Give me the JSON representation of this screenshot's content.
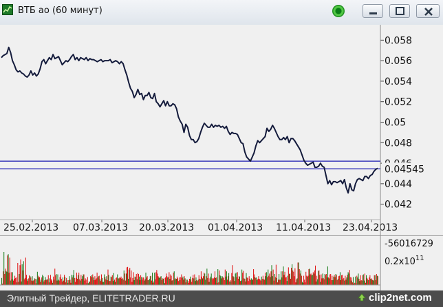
{
  "window": {
    "title": "ВТБ ао (60 минут)",
    "status_icon": "green-status-dot-icon",
    "controls": [
      "minimize-icon",
      "maximize-icon",
      "close-icon"
    ]
  },
  "colors": {
    "price_line": "#141b3c",
    "level_lines": "#1919b0",
    "vol_up": "#1f7f1f",
    "vol_down": "#e01818",
    "footer_bg": "#4c4c4c"
  },
  "chart_data": [
    {
      "type": "line",
      "title": "",
      "x_tick_labels": [
        "25.02.2013",
        "07.03.2013",
        "20.03.2013",
        "01.04.2013",
        "11.04.2013",
        "23.04.2013"
      ],
      "y_tick_labels": [
        "0.058",
        "0.056",
        "0.054",
        "0.052",
        "0.05",
        "0.048",
        "0.046",
        "0.044",
        "0.042"
      ],
      "ylim": [
        0.0405,
        0.0595
      ],
      "horizontal_levels": [
        0.0462,
        0.04545
      ],
      "last_value_label": "0.04545",
      "grid": false,
      "series": [
        {
          "values": [
            0.0563,
            0.0565,
            0.0566,
            0.0567,
            0.0573,
            0.0568,
            0.056,
            0.0556,
            0.0551,
            0.0549,
            0.055,
            0.0548,
            0.0547,
            0.0545,
            0.0544,
            0.0546,
            0.055,
            0.0546,
            0.0548,
            0.0545,
            0.0547,
            0.0552,
            0.0559,
            0.0561,
            0.0557,
            0.056,
            0.0563,
            0.0561,
            0.0566,
            0.0562,
            0.0563,
            0.0564,
            0.056,
            0.0556,
            0.0558,
            0.056,
            0.0559,
            0.0561,
            0.0564,
            0.0566,
            0.0561,
            0.0563,
            0.056,
            0.0563,
            0.0562,
            0.0561,
            0.0563,
            0.056,
            0.0562,
            0.0561,
            0.0561,
            0.056,
            0.0559,
            0.056,
            0.0561,
            0.0559,
            0.056,
            0.056,
            0.056,
            0.0561,
            0.0558,
            0.0559,
            0.056,
            0.0559,
            0.0557,
            0.0559,
            0.0557,
            0.0551,
            0.0546,
            0.0539,
            0.0533,
            0.053,
            0.0524,
            0.0527,
            0.0532,
            0.0527,
            0.0528,
            0.0522,
            0.0526,
            0.0526,
            0.0529,
            0.0524,
            0.0523,
            0.0528,
            0.052,
            0.0518,
            0.0515,
            0.0518,
            0.0521,
            0.0516,
            0.052,
            0.0516,
            0.0516,
            0.0518,
            0.0517,
            0.0513,
            0.0505,
            0.0501,
            0.0498,
            0.049,
            0.0498,
            0.0495,
            0.0487,
            0.0483,
            0.0483,
            0.048,
            0.0481,
            0.0484,
            0.049,
            0.0495,
            0.0499,
            0.0497,
            0.0495,
            0.0495,
            0.0498,
            0.0495,
            0.0497,
            0.0496,
            0.0497,
            0.0495,
            0.0496,
            0.0494,
            0.0496,
            0.0491,
            0.0488,
            0.049,
            0.0489,
            0.0489,
            0.0488,
            0.0484,
            0.048,
            0.0479,
            0.0471,
            0.0466,
            0.0464,
            0.0462,
            0.0466,
            0.047,
            0.0477,
            0.0482,
            0.048,
            0.0482,
            0.0484,
            0.0486,
            0.0494,
            0.0491,
            0.0493,
            0.0497,
            0.0494,
            0.049,
            0.0486,
            0.0483,
            0.0483,
            0.0485,
            0.0483,
            0.0486,
            0.048,
            0.0484,
            0.0484,
            0.0482,
            0.0479,
            0.0476,
            0.0473,
            0.0468,
            0.0463,
            0.046,
            0.0458,
            0.0459,
            0.046,
            0.0461,
            0.0456,
            0.0456,
            0.0457,
            0.046,
            0.0457,
            0.0456,
            0.0448,
            0.044,
            0.0443,
            0.0439,
            0.0442,
            0.0442,
            0.0441,
            0.0442,
            0.0443,
            0.044,
            0.0444,
            0.0436,
            0.0431,
            0.044,
            0.0434,
            0.0433,
            0.044,
            0.0444,
            0.0445,
            0.0444,
            0.0443,
            0.0447,
            0.0447,
            0.0445,
            0.0448,
            0.0449,
            0.0452,
            0.0454,
            0.0455
          ]
        }
      ]
    },
    {
      "type": "bar",
      "title": "",
      "y_tick_labels": [
        "-56016729",
        "0.2x10"
      ],
      "y_tick_exponent": "11",
      "series": [
        {
          "values": [
            0.16,
            0.03,
            0.31,
            0.75,
            0.25,
            0.37,
            0.32,
            0.3,
            0.67,
            0.7,
            0.28,
            0.62,
            0.1,
            0.29,
            0.13,
            0.29,
            0.1,
            0.14,
            0.21,
            0.16,
            0.17,
            0.06,
            0.5,
            0.07,
            0.25,
            0.45,
            0.58,
            0.08,
            0.47,
            0.33,
            0.54,
            0.13,
            0.16,
            0.62,
            0.23,
            0.13,
            0.09,
            0.15,
            0.22,
            0.2,
            0.17,
            0.1,
            0.2,
            0.09,
            0.11,
            0.15,
            0.14,
            0.04,
            0.13,
            0.3,
            0.21,
            0.17,
            0.18,
            0.07,
            0.12,
            0.17,
            0.23,
            0.2,
            0.08,
            0.11,
            0.18,
            0.12,
            0.12,
            0.13,
            0.22,
            0.06,
            0.15,
            0.23,
            0.13,
            0.1,
            0.05,
            0.19,
            0.12,
            0.37,
            0.22,
            0.25,
            0.1,
            0.24,
            0.12,
            0.1,
            0.18,
            0.24,
            0.14,
            0.08,
            0.17,
            0.1,
            0.23,
            0.18,
            0.06,
            0.16,
            0.11,
            0.05,
            0.11,
            0.2,
            0.12,
            0.05,
            0.23,
            0.17,
            0.22,
            0.34,
            0.16,
            0.07,
            0.16,
            0.28,
            0.14,
            0.22,
            0.28,
            0.13,
            0.1,
            0.23,
            0.14,
            0.2,
            0.24,
            0.24,
            0.1,
            0.15,
            0.12,
            0.04,
            0.18,
            0.04,
            0.08,
            0.07,
            0.2,
            0.22,
            0.18,
            0.24,
            0.17,
            0.11,
            0.2,
            0.12,
            0.15,
            0.28,
            0.17,
            0.2,
            0.21,
            0.13,
            0.09,
            0.24,
            0.16,
            0.07,
            0.07,
            0.24,
            0.18,
            0.13,
            0.2,
            0.11,
            0.35,
            0.23,
            0.09,
            0.09,
            0.19,
            0.18,
            0.22,
            0.09,
            0.27,
            0.12,
            0.07,
            0.16,
            0.17,
            0.24,
            0.15,
            0.15,
            0.17,
            0.16,
            0.19,
            0.14,
            0.16,
            0.12,
            0.33,
            0.26,
            0.1,
            0.26,
            0.4,
            0.41,
            0.14,
            0.35,
            0.39,
            0.17,
            0.33,
            0.07,
            0.16,
            0.29,
            0.11,
            0.19,
            0.18,
            0.25,
            0.13,
            0.27,
            0.25,
            0.19,
            0.11,
            0.22,
            0.18,
            0.12,
            0.17,
            0.17,
            0.1,
            0.13,
            0.28,
            0.17,
            0.2,
            0.11,
            0.11,
            0.14,
            0.2,
            0.21,
            0.1,
            0.28,
            0.05,
            0.08,
            0.28,
            0.13,
            0.29,
            0.34,
            0.26,
            0.2,
            0.17,
            0.16,
            0.19,
            0.2,
            0.11,
            0.15,
            0.14,
            0.16,
            0.04,
            0.17,
            0.26,
            0.2,
            0.17,
            0.18,
            0.29,
            0.14,
            0.24,
            0.21,
            0.1,
            0.11,
            0.28,
            0.31,
            0.13,
            0.15,
            0.14,
            0.19,
            0.15,
            0.09,
            0.17,
            0.11,
            0.18,
            0.24,
            0.16,
            0.19,
            0.12,
            0.2,
            0.15,
            0.06,
            0.12,
            0.12,
            0.09,
            0.05,
            0.14,
            0.19,
            0.13,
            0.07,
            0.16,
            0.23,
            0.15,
            0.24,
            0.09,
            0.17,
            0.11,
            0.09,
            0.12,
            0.22,
            0.14,
            0.13,
            0.31,
            0.19,
            0.15,
            0.2,
            0.28,
            0.26,
            0.12,
            0.2,
            0.37,
            0.16,
            0.26,
            0.07,
            0.15,
            0.19,
            0.26,
            0.16,
            0.13,
            0.15,
            0.17,
            0.31,
            0.16,
            0.17,
            0.05,
            0.36,
            0.06,
            0.33,
            0.22,
            0.2,
            0.15,
            0.2,
            0.18,
            0.16,
            0.11,
            0.35,
            0.19,
            0.31,
            0.12,
            0.2,
            0.27,
            0.08,
            0.11,
            0.08,
            0.27,
            0.45,
            0.2,
            0.18,
            0.09,
            0.26,
            0.28,
            0.18,
            0.29,
            0.14,
            0.2,
            0.19,
            0.09,
            0.1,
            0.35,
            0.28,
            0.32,
            0.15,
            0.14,
            0.08,
            0.27,
            0.17,
            0.16,
            0.09,
            0.2,
            0.14,
            0.11,
            0.15,
            0.11,
            0.13,
            0.36,
            0.24,
            0.18,
            0.16,
            0.17,
            0.11,
            0.14,
            0.2,
            0.14,
            0.12,
            0.1,
            0.19,
            0.14,
            0.21,
            0.13,
            0.12,
            0.28,
            0.2,
            0.29,
            0.18,
            0.35,
            0.21,
            0.26,
            0.18,
            0.31,
            0.45,
            0.2,
            0.35,
            0.1,
            0.25,
            0.18,
            0.46,
            0.16,
            0.06,
            0.12,
            0.25,
            0.12,
            0.12,
            0.31,
            0.17,
            0.31,
            0.42,
            0.23,
            0.3,
            0.17,
            0.18,
            0.09,
            0.21,
            0.4,
            0.25,
            0.26,
            0.14,
            0.39,
            0.47,
            0.33,
            0.3,
            0.2,
            0.38,
            0.06,
            0.13,
            0.15,
            0.51,
            0.51,
            0.36,
            0.26,
            0.33,
            0.21,
            0.07,
            0.05,
            0.21,
            0.12,
            0.06,
            0.3,
            0.21,
            0.19,
            0.21,
            0.36,
            0.37,
            0.24,
            0.26,
            0.22,
            0.23,
            0.29,
            0.26,
            0.33,
            0.44,
            0.08,
            0.21,
            0.13,
            0.32,
            0.33,
            0.23,
            0.07,
            0.24,
            0.15,
            0.26,
            0.16,
            0.13,
            0.25,
            0.23,
            0.25,
            0.17,
            0.42,
            0.17,
            0.15,
            0.24,
            0.25,
            0.11,
            0.21,
            0.11,
            0.19,
            0.23,
            0.18,
            0.25,
            0.23,
            0.11,
            0.14,
            0.2,
            0.21,
            0.29,
            0.11,
            0.22,
            0.23,
            0.13,
            0.16,
            0.1,
            0.21,
            0.12,
            0.17,
            0.23,
            0.29,
            0.26,
            0.34,
            0.18,
            0.1,
            0.17,
            0.06,
            0.18,
            0.03,
            0.05,
            0.19,
            0.04,
            0.21,
            0.17,
            0.26,
            0.14,
            0.09,
            0.22,
            0.11,
            0.1,
            0.22,
            0.24,
            0.1,
            0.26,
            0.05,
            0.22,
            0.16,
            0.13,
            0.11,
            0.17,
            0.22,
            0.14,
            0.15,
            0.12,
            0.11,
            0.1,
            0.22,
            0.22,
            0.11,
            0.25,
            0.21,
            0.2
          ]
        }
      ]
    }
  ],
  "footer": {
    "text": "Элитный Трейдер, ELITETRADER.RU",
    "logo": "clip2net.com"
  }
}
